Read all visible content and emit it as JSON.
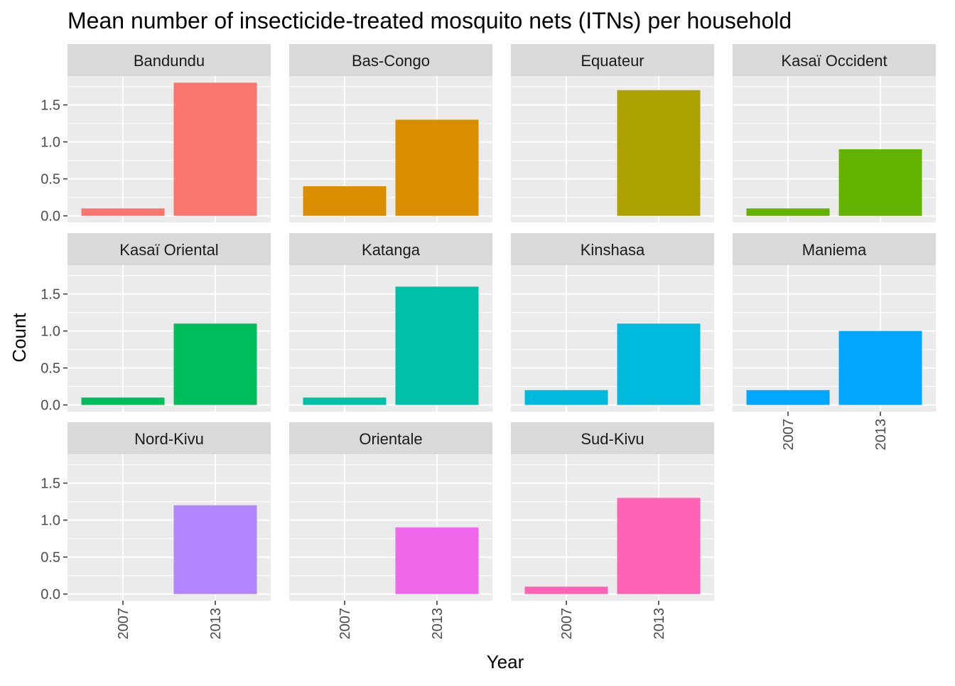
{
  "chart_data": {
    "type": "bar",
    "layout": "facet_wrap",
    "title": "Mean number of insecticide-treated mosquito nets (ITNs) per household",
    "xlabel": "Year",
    "ylabel": "Count",
    "categories": [
      "2007",
      "2013"
    ],
    "ylim": [
      0,
      1.8
    ],
    "yticks": [
      0.0,
      0.5,
      1.0,
      1.5
    ],
    "ytick_labels": [
      "0.0",
      "0.5",
      "1.0",
      "1.5"
    ],
    "grid": true,
    "legend": "none",
    "panels": [
      {
        "name": "Bandundu",
        "color": "#F8766D",
        "values": [
          0.1,
          1.8
        ]
      },
      {
        "name": "Bas-Congo",
        "color": "#DB8E00",
        "values": [
          0.4,
          1.3
        ]
      },
      {
        "name": "Equateur",
        "color": "#AEA200",
        "values": [
          0.0,
          1.7
        ]
      },
      {
        "name": "Kasaï Occident",
        "color": "#64B200",
        "values": [
          0.1,
          0.9
        ]
      },
      {
        "name": "Kasaï Oriental",
        "color": "#00BD5C",
        "values": [
          0.1,
          1.1
        ]
      },
      {
        "name": "Katanga",
        "color": "#00C1A7",
        "values": [
          0.1,
          1.6
        ]
      },
      {
        "name": "Kinshasa",
        "color": "#00BADE",
        "values": [
          0.2,
          1.1
        ]
      },
      {
        "name": "Maniema",
        "color": "#00A6FF",
        "values": [
          0.2,
          1.0
        ]
      },
      {
        "name": "Nord-Kivu",
        "color": "#B385FF",
        "values": [
          0.0,
          1.2
        ]
      },
      {
        "name": "Orientale",
        "color": "#EF67EB",
        "values": [
          0.0,
          0.9
        ]
      },
      {
        "name": "Sud-Kivu",
        "color": "#FF63B6",
        "values": [
          0.1,
          1.3
        ]
      }
    ]
  }
}
